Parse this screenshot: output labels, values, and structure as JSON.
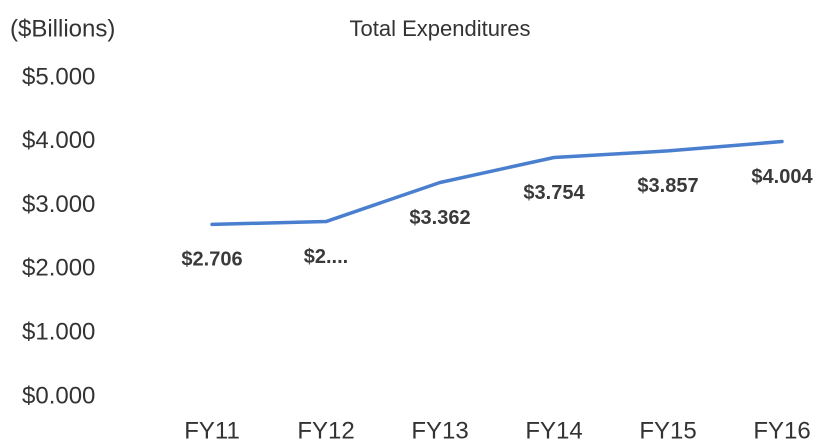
{
  "chart_data": {
    "type": "line",
    "title": "Total Expenditures",
    "y_label": "($Billions)",
    "categories": [
      "FY11",
      "FY12",
      "FY13",
      "FY14",
      "FY15",
      "FY16"
    ],
    "series": [
      {
        "name": "Total Expenditures",
        "color": "#4a7fcf",
        "values": [
          2.706,
          2.75,
          3.362,
          3.754,
          3.857,
          4.004
        ],
        "value_labels": [
          "$2.706",
          "$2....",
          "$3.362",
          "$3.754",
          "$3.857",
          "$4.004"
        ]
      }
    ],
    "ylim": [
      0,
      5
    ],
    "yticks": [
      {
        "value": 0,
        "label": "$0.000"
      },
      {
        "value": 1,
        "label": "$1.000"
      },
      {
        "value": 2,
        "label": "$2.000"
      },
      {
        "value": 3,
        "label": "$3.000"
      },
      {
        "value": 4,
        "label": "$4.000"
      },
      {
        "value": 5,
        "label": "$5.000"
      }
    ],
    "grid": false
  }
}
